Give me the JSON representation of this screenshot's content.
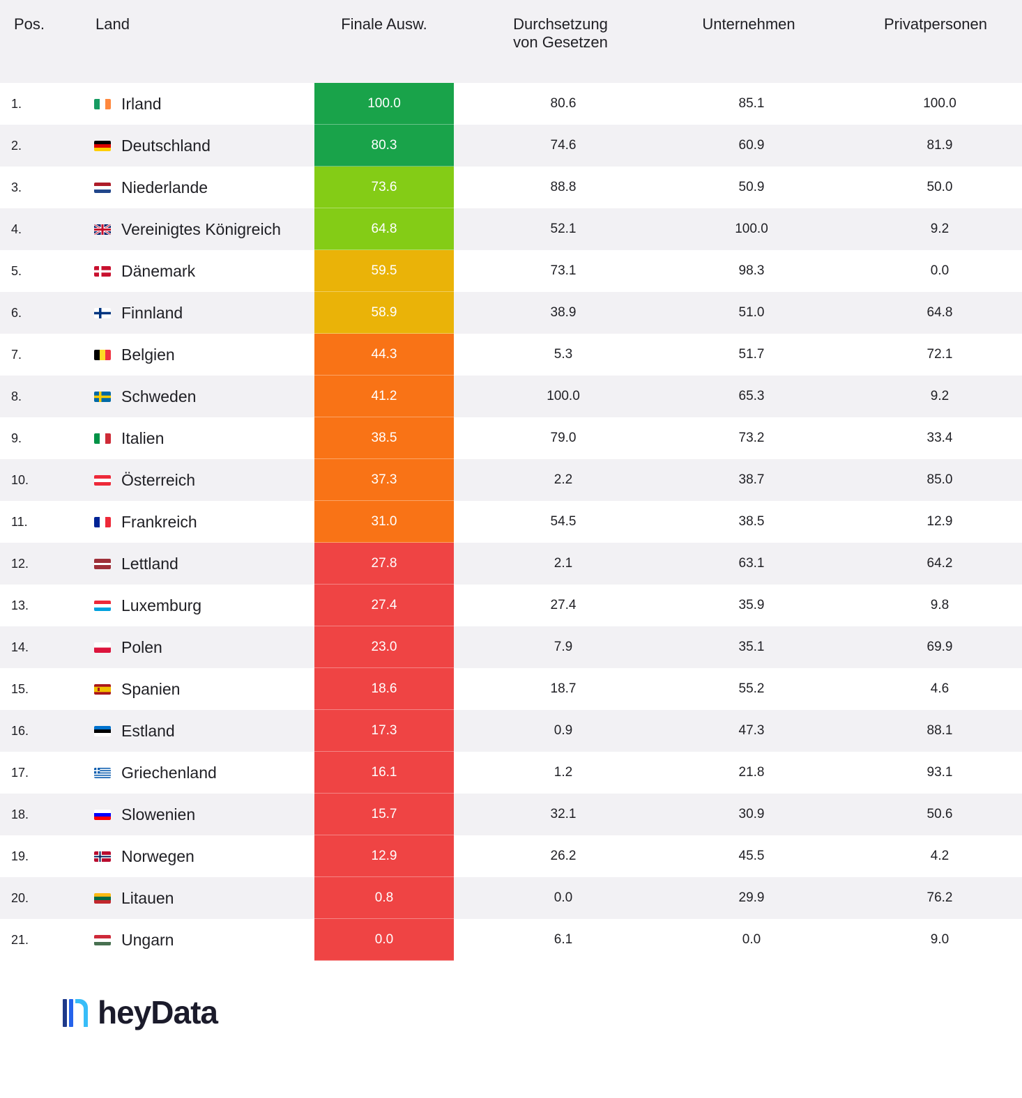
{
  "table": {
    "headers": {
      "pos": "Pos.",
      "country": "Land",
      "final": "Finale Ausw.",
      "enforcement_line1": "Durchsetzung",
      "enforcement_line2": "von Gesetzen",
      "companies": "Unternehmen",
      "individuals": "Privatpersonen"
    },
    "colors": {
      "dark_green": "#19a34a",
      "light_green": "#84cc16",
      "yellow": "#eab308",
      "orange": "#f97316",
      "red": "#ef4444"
    }
  },
  "chart_data": {
    "type": "table",
    "columns": [
      "Pos.",
      "Land",
      "Finale Ausw.",
      "Durchsetzung von Gesetzen",
      "Unternehmen",
      "Privatpersonen"
    ],
    "rows": [
      {
        "pos": "1.",
        "country": "Irland",
        "flag": "ireland-flag",
        "final": "100.0",
        "enforcement": "80.6",
        "companies": "85.1",
        "individuals": "100.0",
        "color": "#19a34a"
      },
      {
        "pos": "2.",
        "country": "Deutschland",
        "flag": "germany-flag",
        "final": "80.3",
        "enforcement": "74.6",
        "companies": "60.9",
        "individuals": "81.9",
        "color": "#19a34a"
      },
      {
        "pos": "3.",
        "country": "Niederlande",
        "flag": "netherlands-flag",
        "final": "73.6",
        "enforcement": "88.8",
        "companies": "50.9",
        "individuals": "50.0",
        "color": "#84cc16"
      },
      {
        "pos": "4.",
        "country": "Vereinigtes Königreich",
        "flag": "uk-flag",
        "final": "64.8",
        "enforcement": "52.1",
        "companies": "100.0",
        "individuals": "9.2",
        "color": "#84cc16"
      },
      {
        "pos": "5.",
        "country": "Dänemark",
        "flag": "denmark-flag",
        "final": "59.5",
        "enforcement": "73.1",
        "companies": "98.3",
        "individuals": "0.0",
        "color": "#eab308"
      },
      {
        "pos": "6.",
        "country": "Finnland",
        "flag": "finland-flag",
        "final": "58.9",
        "enforcement": "38.9",
        "companies": "51.0",
        "individuals": "64.8",
        "color": "#eab308"
      },
      {
        "pos": "7.",
        "country": "Belgien",
        "flag": "belgium-flag",
        "final": "44.3",
        "enforcement": "5.3",
        "companies": "51.7",
        "individuals": "72.1",
        "color": "#f97316"
      },
      {
        "pos": "8.",
        "country": "Schweden",
        "flag": "sweden-flag",
        "final": "41.2",
        "enforcement": "100.0",
        "companies": "65.3",
        "individuals": "9.2",
        "color": "#f97316"
      },
      {
        "pos": "9.",
        "country": "Italien",
        "flag": "italy-flag",
        "final": "38.5",
        "enforcement": "79.0",
        "companies": "73.2",
        "individuals": "33.4",
        "color": "#f97316"
      },
      {
        "pos": "10.",
        "country": "Österreich",
        "flag": "austria-flag",
        "final": "37.3",
        "enforcement": "2.2",
        "companies": "38.7",
        "individuals": "85.0",
        "color": "#f97316"
      },
      {
        "pos": "11.",
        "country": "Frankreich",
        "flag": "france-flag",
        "final": "31.0",
        "enforcement": "54.5",
        "companies": "38.5",
        "individuals": "12.9",
        "color": "#f97316"
      },
      {
        "pos": "12.",
        "country": "Lettland",
        "flag": "latvia-flag",
        "final": "27.8",
        "enforcement": "2.1",
        "companies": "63.1",
        "individuals": "64.2",
        "color": "#ef4444"
      },
      {
        "pos": "13.",
        "country": "Luxemburg",
        "flag": "luxembourg-flag",
        "final": "27.4",
        "enforcement": "27.4",
        "companies": "35.9",
        "individuals": "9.8",
        "color": "#ef4444"
      },
      {
        "pos": "14.",
        "country": "Polen",
        "flag": "poland-flag",
        "final": "23.0",
        "enforcement": "7.9",
        "companies": "35.1",
        "individuals": "69.9",
        "color": "#ef4444"
      },
      {
        "pos": "15.",
        "country": "Spanien",
        "flag": "spain-flag",
        "final": "18.6",
        "enforcement": "18.7",
        "companies": "55.2",
        "individuals": "4.6",
        "color": "#ef4444"
      },
      {
        "pos": "16.",
        "country": "Estland",
        "flag": "estonia-flag",
        "final": "17.3",
        "enforcement": "0.9",
        "companies": "47.3",
        "individuals": "88.1",
        "color": "#ef4444"
      },
      {
        "pos": "17.",
        "country": "Griechenland",
        "flag": "greece-flag",
        "final": "16.1",
        "enforcement": "1.2",
        "companies": "21.8",
        "individuals": "93.1",
        "color": "#ef4444"
      },
      {
        "pos": "18.",
        "country": "Slowenien",
        "flag": "slovenia-flag",
        "final": "15.7",
        "enforcement": "32.1",
        "companies": "30.9",
        "individuals": "50.6",
        "color": "#ef4444"
      },
      {
        "pos": "19.",
        "country": "Norwegen",
        "flag": "norway-flag",
        "final": "12.9",
        "enforcement": "26.2",
        "companies": "45.5",
        "individuals": "4.2",
        "color": "#ef4444"
      },
      {
        "pos": "20.",
        "country": "Litauen",
        "flag": "lithuania-flag",
        "final": "0.8",
        "enforcement": "0.0",
        "companies": "29.9",
        "individuals": "76.2",
        "color": "#ef4444"
      },
      {
        "pos": "21.",
        "country": "Ungarn",
        "flag": "hungary-flag",
        "final": "0.0",
        "enforcement": "6.1",
        "companies": "0.0",
        "individuals": "9.0",
        "color": "#ef4444"
      }
    ]
  },
  "logo": {
    "text": "heyData",
    "mark_colors": [
      "#1e3a8a",
      "#2563eb",
      "#38bdf8"
    ]
  }
}
